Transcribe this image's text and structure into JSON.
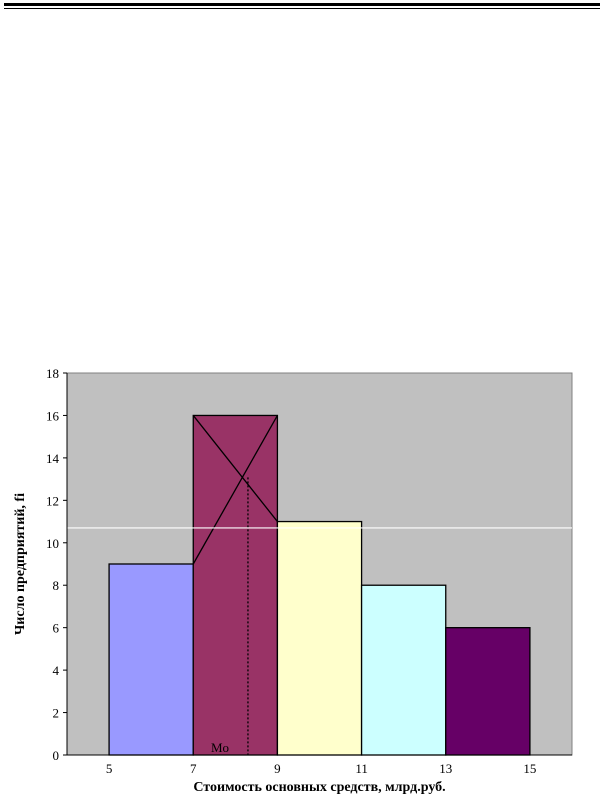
{
  "chart_data": {
    "type": "bar",
    "histogram": true,
    "bins": [
      [
        5,
        7
      ],
      [
        7,
        9
      ],
      [
        9,
        11
      ],
      [
        11,
        13
      ],
      [
        13,
        15
      ]
    ],
    "values": [
      9,
      16,
      11,
      8,
      6
    ],
    "bar_colors": [
      "#9999ff",
      "#993366",
      "#ffffcc",
      "#ccffff",
      "#660066"
    ],
    "x_ticks": [
      "5",
      "7",
      "9",
      "11",
      "13",
      "15"
    ],
    "y_ticks": [
      "0",
      "2",
      "4",
      "6",
      "8",
      "10",
      "12",
      "14",
      "16",
      "18"
    ],
    "xlim": [
      4,
      16
    ],
    "ylim": [
      0,
      18
    ],
    "xlabel": "Стоимость основных средств, млрд.руб.",
    "ylabel": "Число предприятий, fi",
    "title": "",
    "grid": false,
    "plot_background": "#c0c0c0",
    "mode_construction": {
      "label": "Mo",
      "x": 8.3
    }
  }
}
